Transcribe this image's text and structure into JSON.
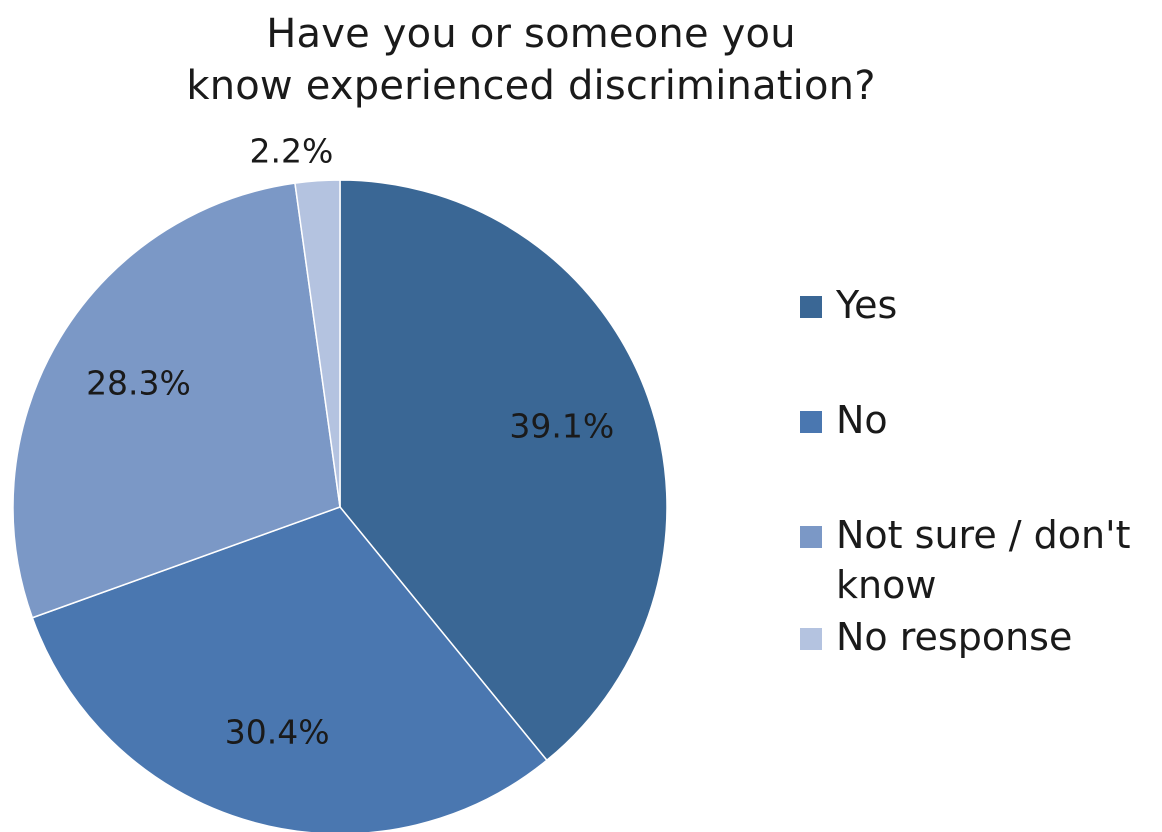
{
  "chart_data": {
    "type": "pie",
    "title_lines": [
      "Have you or someone you",
      "know experienced discrimination?"
    ],
    "slices": [
      {
        "name": "Yes",
        "value": 39.1,
        "label": "39.1%",
        "color": "#3A6795"
      },
      {
        "name": "No",
        "value": 30.4,
        "label": "30.4%",
        "color": "#4A77B0"
      },
      {
        "name": "Not sure / don't know",
        "value": 28.3,
        "label": "28.3%",
        "color": "#7B98C6"
      },
      {
        "name": "No response",
        "value": 2.2,
        "label": "2.2%",
        "color": "#B4C3E0"
      }
    ],
    "legend_position": "right",
    "start_angle": "12 o'clock",
    "direction": "clockwise"
  }
}
